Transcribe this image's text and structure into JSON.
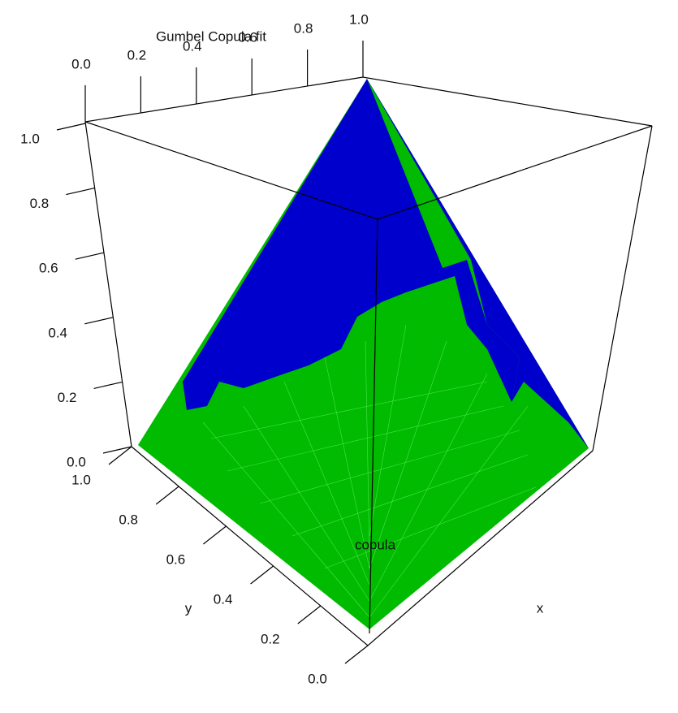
{
  "chart_data": {
    "type": "surface3d",
    "title": "Gumbel Copula fit",
    "x_label": "x",
    "y_label": "y",
    "z_label": "copula",
    "xlim": [
      0,
      1
    ],
    "ylim": [
      0,
      1
    ],
    "zlim": [
      0,
      1
    ],
    "xticks": [
      {
        "value": 0,
        "label": "0.0"
      },
      0.2,
      0.4,
      0.6,
      0.8,
      {
        "value": 1,
        "label": "1.0"
      }
    ],
    "yticks": [
      {
        "value": 0,
        "label": "0.0"
      },
      0.2,
      0.4,
      0.6,
      0.8,
      {
        "value": 1,
        "label": "1.0"
      }
    ],
    "zticks": [
      {
        "value": 0,
        "label": "0.0"
      },
      0.2,
      0.4,
      0.6,
      0.8,
      {
        "value": 1,
        "label": "1.0"
      }
    ],
    "colors": [
      "#0000cc",
      "#00bb00"
    ]
  }
}
